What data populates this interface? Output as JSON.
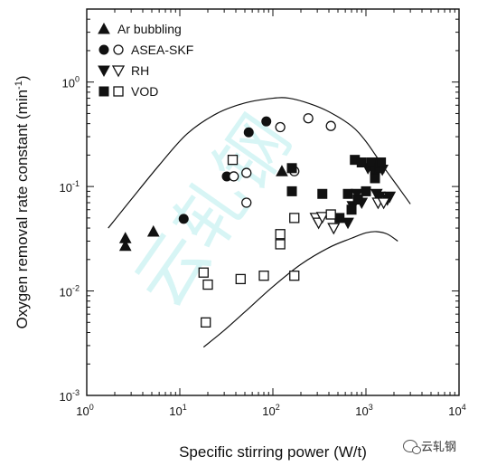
{
  "chart_data": {
    "type": "scatter",
    "xlabel": "Specific stirring power (W/t)",
    "ylabel": "Oxygen removal rate constant (min",
    "ylabel_sup": "-1",
    "ylabel_tail": ")",
    "xscale": "log",
    "yscale": "log",
    "xlim": [
      1,
      10000
    ],
    "ylim": [
      0.001,
      5
    ],
    "xticks": [
      {
        "base": "10",
        "exp": "0",
        "value": 1
      },
      {
        "base": "10",
        "exp": "1",
        "value": 10
      },
      {
        "base": "10",
        "exp": "2",
        "value": 100
      },
      {
        "base": "10",
        "exp": "3",
        "value": 1000
      },
      {
        "base": "10",
        "exp": "4",
        "value": 10000
      }
    ],
    "yticks": [
      {
        "base": "10",
        "exp": "-3",
        "value": 0.001
      },
      {
        "base": "10",
        "exp": "-2",
        "value": 0.01
      },
      {
        "base": "10",
        "exp": "-1",
        "value": 0.1
      },
      {
        "base": "10",
        "exp": "0",
        "value": 1
      }
    ],
    "legend_position": "top-left",
    "legend": [
      {
        "label": "Ar bubbling",
        "markers": [
          "triangle-up-filled"
        ]
      },
      {
        "label": "ASEA-SKF",
        "markers": [
          "circle-filled",
          "circle-open"
        ]
      },
      {
        "label": "RH",
        "markers": [
          "triangle-down-filled",
          "triangle-down-open"
        ]
      },
      {
        "label": "VOD",
        "markers": [
          "square-filled",
          "square-open"
        ]
      }
    ],
    "series": [
      {
        "name": "Ar bubbling",
        "marker": "triangle-up-filled",
        "points": [
          [
            2.6,
            0.032
          ],
          [
            2.6,
            0.027
          ],
          [
            5.2,
            0.037
          ],
          [
            125,
            0.14
          ]
        ]
      },
      {
        "name": "ASEA-SKF",
        "marker": "circle-filled",
        "points": [
          [
            11,
            0.049
          ],
          [
            32,
            0.125
          ],
          [
            55,
            0.33
          ],
          [
            85,
            0.42
          ]
        ]
      },
      {
        "name": "ASEA-SKF",
        "marker": "circle-open",
        "points": [
          [
            38,
            0.125
          ],
          [
            52,
            0.135
          ],
          [
            52,
            0.07
          ],
          [
            120,
            0.37
          ],
          [
            170,
            0.14
          ],
          [
            240,
            0.45
          ],
          [
            420,
            0.38
          ]
        ]
      },
      {
        "name": "RH",
        "marker": "triangle-down-filled",
        "points": [
          [
            640,
            0.045
          ],
          [
            720,
            0.065
          ],
          [
            800,
            0.085
          ],
          [
            900,
            0.07
          ],
          [
            1050,
            0.15
          ],
          [
            1200,
            0.155
          ],
          [
            1300,
            0.085
          ],
          [
            1400,
            0.08
          ],
          [
            1500,
            0.145
          ],
          [
            1700,
            0.075
          ],
          [
            1800,
            0.08
          ]
        ]
      },
      {
        "name": "RH",
        "marker": "triangle-down-open",
        "points": [
          [
            290,
            0.05
          ],
          [
            310,
            0.045
          ],
          [
            340,
            0.051
          ],
          [
            450,
            0.04
          ],
          [
            1350,
            0.07
          ],
          [
            1550,
            0.07
          ]
        ]
      },
      {
        "name": "VOD",
        "marker": "square-filled",
        "points": [
          [
            160,
            0.09
          ],
          [
            160,
            0.15
          ],
          [
            340,
            0.085
          ],
          [
            520,
            0.05
          ],
          [
            640,
            0.085
          ],
          [
            700,
            0.06
          ],
          [
            760,
            0.18
          ],
          [
            820,
            0.075
          ],
          [
            900,
            0.17
          ],
          [
            1000,
            0.09
          ],
          [
            1150,
            0.17
          ],
          [
            1250,
            0.14
          ],
          [
            1250,
            0.12
          ],
          [
            1400,
            0.15
          ],
          [
            1450,
            0.17
          ]
        ]
      },
      {
        "name": "VOD",
        "marker": "square-open",
        "points": [
          [
            18,
            0.015
          ],
          [
            19,
            0.005
          ],
          [
            20,
            0.0115
          ],
          [
            37,
            0.18
          ],
          [
            45,
            0.013
          ],
          [
            80,
            0.014
          ],
          [
            120,
            0.035
          ],
          [
            120,
            0.028
          ],
          [
            170,
            0.05
          ],
          [
            170,
            0.014
          ],
          [
            420,
            0.054
          ]
        ]
      }
    ],
    "envelope": {
      "upper": [
        [
          1.7,
          0.04
        ],
        [
          3,
          0.075
        ],
        [
          6,
          0.16
        ],
        [
          12,
          0.32
        ],
        [
          25,
          0.5
        ],
        [
          50,
          0.63
        ],
        [
          100,
          0.7
        ],
        [
          150,
          0.7
        ],
        [
          250,
          0.62
        ],
        [
          400,
          0.52
        ],
        [
          700,
          0.38
        ],
        [
          1000,
          0.27
        ],
        [
          1500,
          0.16
        ],
        [
          2200,
          0.1
        ],
        [
          3000,
          0.068
        ]
      ],
      "lower": [
        [
          18,
          0.0029
        ],
        [
          30,
          0.0042
        ],
        [
          50,
          0.0063
        ],
        [
          100,
          0.011
        ],
        [
          200,
          0.018
        ],
        [
          400,
          0.026
        ],
        [
          700,
          0.032
        ],
        [
          1000,
          0.036
        ],
        [
          1300,
          0.037
        ],
        [
          1700,
          0.035
        ],
        [
          2200,
          0.03
        ]
      ]
    }
  },
  "watermark": {
    "chart_text": "云轧钢",
    "brand_text": "云轧钢"
  }
}
